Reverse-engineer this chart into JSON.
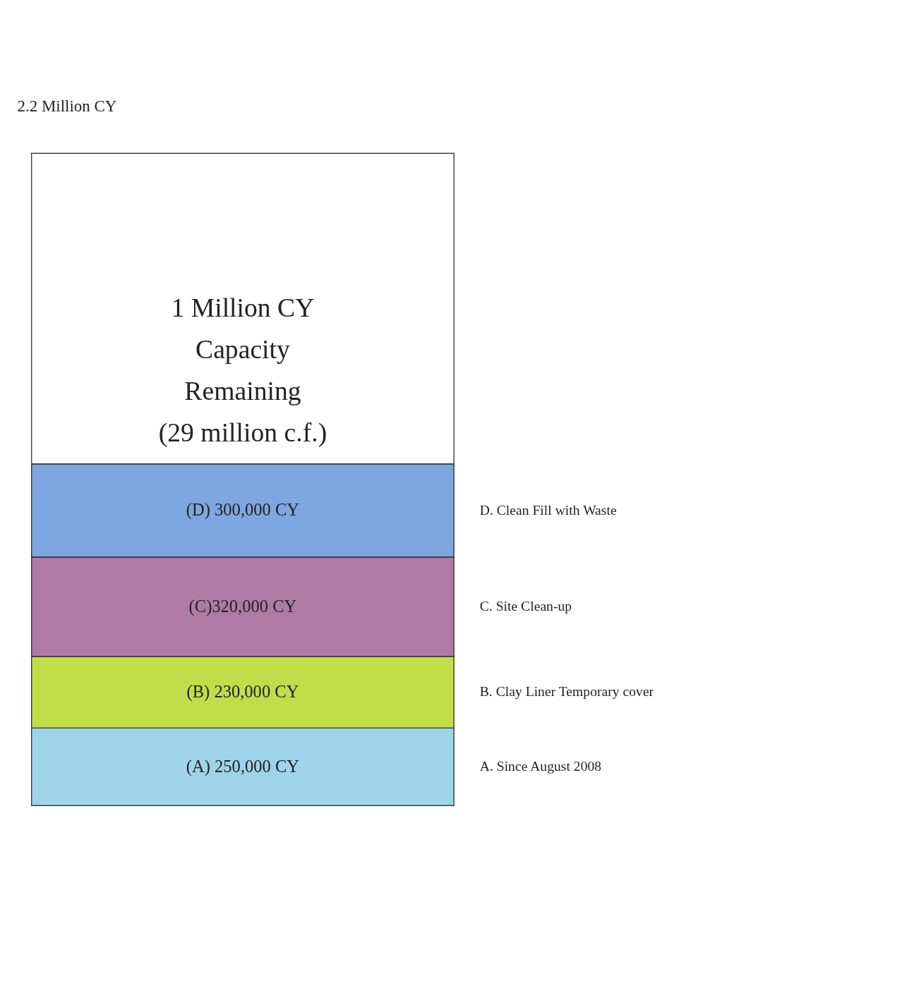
{
  "chart_data": {
    "type": "bar",
    "stacked": true,
    "categories": [
      null
    ],
    "legend": false,
    "series": [
      {
        "name": "A. Since August 2008",
        "color": "#9fd3ea",
        "values": [
          250000
        ],
        "value_labels": [
          "(A) 250,000 CY"
        ]
      },
      {
        "name": "B. Clay Liner Temporary cover",
        "color": "#c3dc4a",
        "values": [
          230000
        ],
        "value_labels": [
          "(B) 230,000 CY"
        ]
      },
      {
        "name": "C. Site Clean-up",
        "color": "#b07aa6",
        "values": [
          320000
        ],
        "value_labels": [
          "(C)320,000 CY"
        ]
      },
      {
        "name": "D. Clean Fill with Waste",
        "color": "#7ea6e0",
        "values": [
          300000
        ],
        "value_labels": [
          "(D) 300,000 CY"
        ]
      },
      {
        "color": "#ffffff",
        "values": [
          1000000
        ]
      }
    ],
    "annotations": [
      "2.2 Million CY",
      "1 Million CY\nCapacity\nRemaining\n\n(29 million c.f.)"
    ]
  }
}
